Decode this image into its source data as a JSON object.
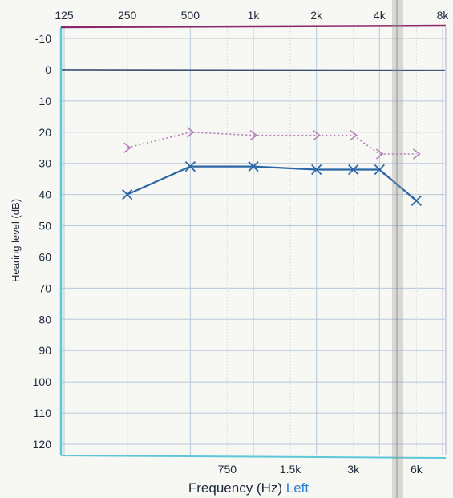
{
  "chart_data": {
    "type": "line",
    "title": "",
    "xlabel": "Frequency (Hz)",
    "xlabel_suffix": "Left",
    "ylabel": "Hearing level (dB)",
    "x_scale": "log",
    "y_inverted": true,
    "xlim": [
      125,
      8000
    ],
    "ylim": [
      -10,
      120
    ],
    "x_ticks_top": [
      {
        "value": 125,
        "label": "125"
      },
      {
        "value": 250,
        "label": "250"
      },
      {
        "value": 500,
        "label": "500"
      },
      {
        "value": 1000,
        "label": "1k"
      },
      {
        "value": 2000,
        "label": "2k"
      },
      {
        "value": 4000,
        "label": "4k"
      },
      {
        "value": 8000,
        "label": "8k"
      }
    ],
    "x_ticks_bottom": [
      {
        "value": 750,
        "label": "750"
      },
      {
        "value": 1500,
        "label": "1.5k"
      },
      {
        "value": 3000,
        "label": "3k"
      },
      {
        "value": 6000,
        "label": "6k"
      }
    ],
    "y_ticks": [
      {
        "value": -10,
        "label": "-10"
      },
      {
        "value": 0,
        "label": "0"
      },
      {
        "value": 10,
        "label": "10"
      },
      {
        "value": 20,
        "label": "20"
      },
      {
        "value": 30,
        "label": "30"
      },
      {
        "value": 40,
        "label": "40"
      },
      {
        "value": 50,
        "label": "50"
      },
      {
        "value": 60,
        "label": "60"
      },
      {
        "value": 70,
        "label": "70"
      },
      {
        "value": 80,
        "label": "80"
      },
      {
        "value": 90,
        "label": "90"
      },
      {
        "value": 100,
        "label": "100"
      },
      {
        "value": 110,
        "label": "110"
      },
      {
        "value": 120,
        "label": "120"
      }
    ],
    "grid": true,
    "reference_line_y": 0,
    "series": [
      {
        "marker": "chevron-right",
        "line_style": "dotted",
        "color": "#b77fb8",
        "x": [
          250,
          500,
          1000,
          2000,
          3000,
          4000,
          6000
        ],
        "y": [
          25,
          20,
          21,
          21,
          21,
          27,
          27
        ]
      },
      {
        "marker": "x",
        "line_style": "solid",
        "color": "#2b66a6",
        "x": [
          250,
          500,
          1000,
          2000,
          3000,
          4000,
          6000
        ],
        "y": [
          40,
          31,
          31,
          32,
          32,
          32,
          42
        ]
      }
    ],
    "colors": {
      "frame_left": "#5cc8d8",
      "frame_top": "#8a2a6a",
      "frame_right": "#d8d0e0",
      "grid_major": "#b9c8d9",
      "grid_minor": "#d5dee8",
      "label_text": "#1d2a3a",
      "axis_title": "#2f6f9a",
      "left_label": "#2f7fd0",
      "zero_line": "#3a5070"
    }
  }
}
